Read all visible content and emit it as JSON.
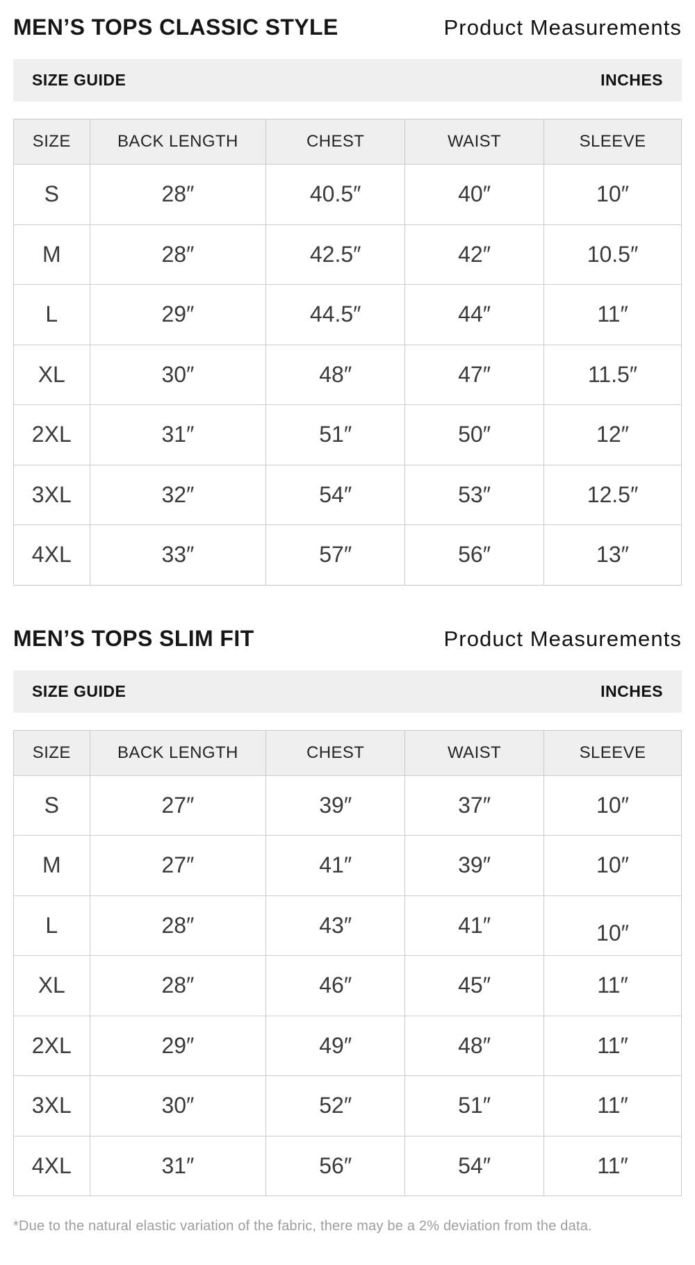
{
  "page": {
    "background": "#ffffff",
    "bar_background": "#efefef",
    "header_background": "#efefef",
    "border_color": "#c9c9c9",
    "footnote_color": "#9d9d9d",
    "footnote": "*Due to the natural elastic variation of the fabric, there may be a 2% deviation from the data."
  },
  "chart_data": [
    {
      "type": "table",
      "title": "MEN’S TOPS CLASSIC STYLE",
      "subtitle": "Product Measurements",
      "guide_label": "SIZE GUIDE",
      "unit_label": "INCHES",
      "columns": [
        "SIZE",
        "BACK LENGTH",
        "CHEST",
        "WAIST",
        "SLEEVE"
      ],
      "rows": [
        [
          "S",
          "28″",
          "40.5″",
          "40″",
          "10″"
        ],
        [
          "M",
          "28″",
          "42.5″",
          "42″",
          "10.5″"
        ],
        [
          "L",
          "29″",
          "44.5″",
          "44″",
          "11″"
        ],
        [
          "XL",
          "30″",
          "48″",
          "47″",
          "11.5″"
        ],
        [
          "2XL",
          "31″",
          "51″",
          "50″",
          "12″"
        ],
        [
          "3XL",
          "32″",
          "54″",
          "53″",
          "12.5″"
        ],
        [
          "4XL",
          "33″",
          "57″",
          "56″",
          "13″"
        ]
      ]
    },
    {
      "type": "table",
      "title": "MEN’S TOPS SLIM FIT",
      "subtitle": "Product Measurements",
      "guide_label": "SIZE GUIDE",
      "unit_label": "INCHES",
      "columns": [
        "SIZE",
        "BACK LENGTH",
        "CHEST",
        "WAIST",
        "SLEEVE"
      ],
      "rows": [
        [
          "S",
          "27″",
          "39″",
          "37″",
          "10″"
        ],
        [
          "M",
          "27″",
          "41″",
          "39″",
          "10″"
        ],
        [
          "L",
          "28″",
          "43″",
          "41″",
          "10″"
        ],
        [
          "XL",
          "28″",
          "46″",
          "45″",
          "11″"
        ],
        [
          "2XL",
          "29″",
          "49″",
          "48″",
          "11″"
        ],
        [
          "3XL",
          "30″",
          "52″",
          "51″",
          "11″"
        ],
        [
          "4XL",
          "31″",
          "56″",
          "54″",
          "11″"
        ]
      ]
    }
  ]
}
